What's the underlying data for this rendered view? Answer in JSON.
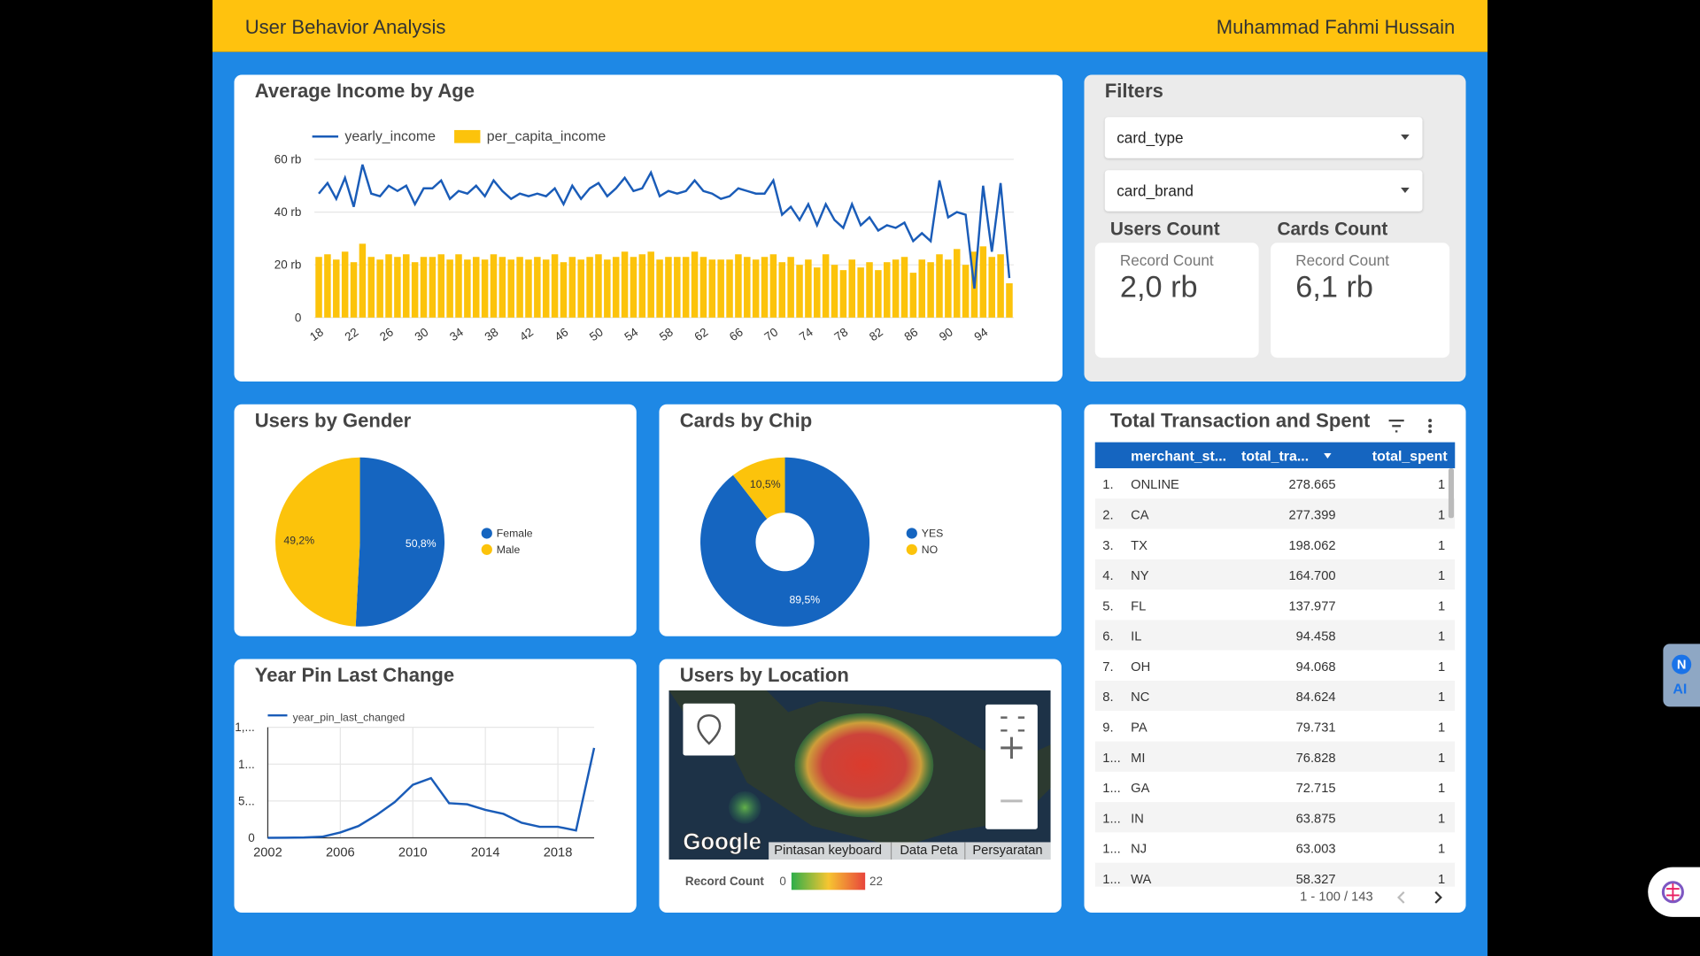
{
  "header": {
    "title": "User Behavior Analysis",
    "author": "Muhammad Fahmi Hussain"
  },
  "chart_data": [
    {
      "type": "bar_line",
      "title": "Average Income by Age",
      "legend": "top",
      "grid": true,
      "categories": [
        "18",
        null,
        null,
        null,
        "22",
        null,
        null,
        null,
        "26",
        null,
        null,
        null,
        "30",
        null,
        null,
        null,
        "34",
        null,
        null,
        null,
        "38",
        null,
        null,
        null,
        "42",
        null,
        null,
        null,
        "46",
        null,
        null,
        null,
        "50",
        null,
        null,
        null,
        "54",
        null,
        null,
        null,
        "58",
        null,
        null,
        null,
        "62",
        null,
        null,
        null,
        "66",
        null,
        null,
        null,
        "70",
        null,
        null,
        null,
        "74",
        null,
        null,
        null,
        "78",
        null,
        null,
        null,
        "82",
        null,
        null,
        null,
        "86",
        null,
        null,
        null,
        "90",
        null,
        null,
        null,
        "94",
        null,
        null,
        null
      ],
      "ylim": [
        0,
        60000
      ],
      "yticks": [
        0,
        {
          "value": 20000,
          "label": "20 rb"
        },
        {
          "value": 40000,
          "label": "40 rb"
        },
        {
          "value": 60000,
          "label": "60 rb"
        }
      ],
      "series": [
        {
          "name": "yearly_income",
          "type": "line",
          "color": "#1a5cb8",
          "values": [
            47000,
            51000,
            45000,
            53000,
            42000,
            58000,
            47000,
            46000,
            50000,
            48000,
            50000,
            43000,
            49000,
            49000,
            52000,
            45000,
            48000,
            47000,
            50000,
            46000,
            52000,
            48000,
            45000,
            47000,
            46000,
            47000,
            46000,
            49000,
            43000,
            50000,
            45000,
            49000,
            51000,
            46000,
            49000,
            53000,
            48000,
            49000,
            55000,
            46000,
            48000,
            47000,
            48000,
            52000,
            48000,
            47000,
            45000,
            46000,
            49000,
            48000,
            47000,
            47000,
            52000,
            39000,
            42000,
            37000,
            43000,
            35000,
            43000,
            37000,
            34000,
            43000,
            35000,
            38000,
            33000,
            35000,
            34000,
            36000,
            29000,
            32000,
            29000,
            52000,
            38000,
            40000,
            39000,
            11000,
            50000,
            25000,
            51000,
            15000
          ]
        },
        {
          "name": "per_capita_income",
          "type": "bar",
          "color": "#fcc30b",
          "values": [
            23000,
            24000,
            22000,
            25000,
            21000,
            28000,
            23000,
            22000,
            24000,
            23000,
            24000,
            21000,
            23000,
            23000,
            24000,
            22000,
            24000,
            22000,
            23000,
            22000,
            24000,
            23000,
            22000,
            23000,
            22000,
            23000,
            22000,
            24000,
            21000,
            23000,
            22000,
            23000,
            24000,
            22000,
            23000,
            25000,
            23000,
            24000,
            25000,
            22000,
            23000,
            23000,
            23000,
            25000,
            23000,
            22000,
            22000,
            22000,
            24000,
            23000,
            22000,
            23000,
            24000,
            21000,
            23000,
            20000,
            22000,
            19000,
            24000,
            20000,
            18000,
            22000,
            19000,
            21000,
            18000,
            21000,
            22000,
            23000,
            17000,
            22000,
            21000,
            24000,
            22000,
            26000,
            20000,
            25000,
            27000,
            23000,
            24000,
            13000
          ]
        }
      ]
    },
    {
      "type": "pie",
      "title": "Users by Gender",
      "legend": "right",
      "categories": [
        "Female",
        "Male"
      ],
      "values": [
        50.8,
        49.2
      ],
      "value_labels": [
        "50,8%",
        "49,2%"
      ],
      "colors": [
        "#1565c0",
        "#fcc30b"
      ]
    },
    {
      "type": "donut",
      "title": "Cards by Chip",
      "legend": "right",
      "categories": [
        "YES",
        "NO"
      ],
      "values": [
        89.5,
        10.5
      ],
      "value_labels": [
        "89,5%",
        "10,5%"
      ],
      "colors": [
        "#1565c0",
        "#fcc30b"
      ]
    },
    {
      "type": "line",
      "title": "Year Pin Last Change",
      "legend": "top",
      "grid": true,
      "x": [
        2002,
        2003,
        2004,
        2005,
        2006,
        2007,
        2008,
        2009,
        2010,
        2011,
        2012,
        2013,
        2014,
        2015,
        2016,
        2017,
        2018,
        2019,
        2020
      ],
      "xlim": [
        2002,
        2020
      ],
      "xticks": [
        2002,
        2006,
        2010,
        2014,
        2018
      ],
      "ylim": [
        0,
        1500
      ],
      "yticks": [
        0,
        {
          "value": 500,
          "label": "5..."
        },
        {
          "value": 1000,
          "label": "1..."
        },
        {
          "value": 1500,
          "label": "1,..."
        }
      ],
      "series": [
        {
          "name": "year_pin_last_changed",
          "color": "#1a5cb8",
          "values": [
            0,
            2,
            5,
            15,
            73,
            160,
            310,
            485,
            720,
            810,
            470,
            455,
            380,
            325,
            205,
            150,
            150,
            100,
            1220
          ]
        }
      ]
    }
  ],
  "filters": {
    "title": "Filters",
    "controls": [
      "card_type",
      "card_brand"
    ]
  },
  "scorecards": [
    {
      "title": "Users Count",
      "label": "Record Count",
      "value": "2,0 rb"
    },
    {
      "title": "Cards Count",
      "label": "Record Count",
      "value": "6,1 rb"
    }
  ],
  "map": {
    "title": "Users by Location",
    "logo": "Google",
    "links": [
      "Pintasan keyboard",
      "Data Peta",
      "Persyaratan"
    ],
    "legend_title": "Record Count",
    "min": 0,
    "max": 22
  },
  "table": {
    "title": "Total Transaction and Spent",
    "columns": [
      "merchant_st...",
      "total_tra...",
      "total_spent"
    ],
    "rows": [
      [
        "1.",
        "ONLINE",
        "278.665",
        "1"
      ],
      [
        "2.",
        "CA",
        "277.399",
        "1"
      ],
      [
        "3.",
        "TX",
        "198.062",
        "1"
      ],
      [
        "4.",
        "NY",
        "164.700",
        "1"
      ],
      [
        "5.",
        "FL",
        "137.977",
        "1"
      ],
      [
        "6.",
        "IL",
        "94.458",
        "1"
      ],
      [
        "7.",
        "OH",
        "94.068",
        "1"
      ],
      [
        "8.",
        "NC",
        "84.624",
        "1"
      ],
      [
        "9.",
        "PA",
        "79.731",
        "1"
      ],
      [
        "1...",
        "MI",
        "76.828",
        "1"
      ],
      [
        "1...",
        "GA",
        "72.715",
        "1"
      ],
      [
        "1...",
        "IN",
        "63.875",
        "1"
      ],
      [
        "1...",
        "NJ",
        "63.003",
        "1"
      ],
      [
        "1...",
        "WA",
        "58.327",
        "1"
      ]
    ],
    "pagination": "1 - 100 / 143"
  },
  "assistant": {
    "badge": "N",
    "label": "AI"
  }
}
